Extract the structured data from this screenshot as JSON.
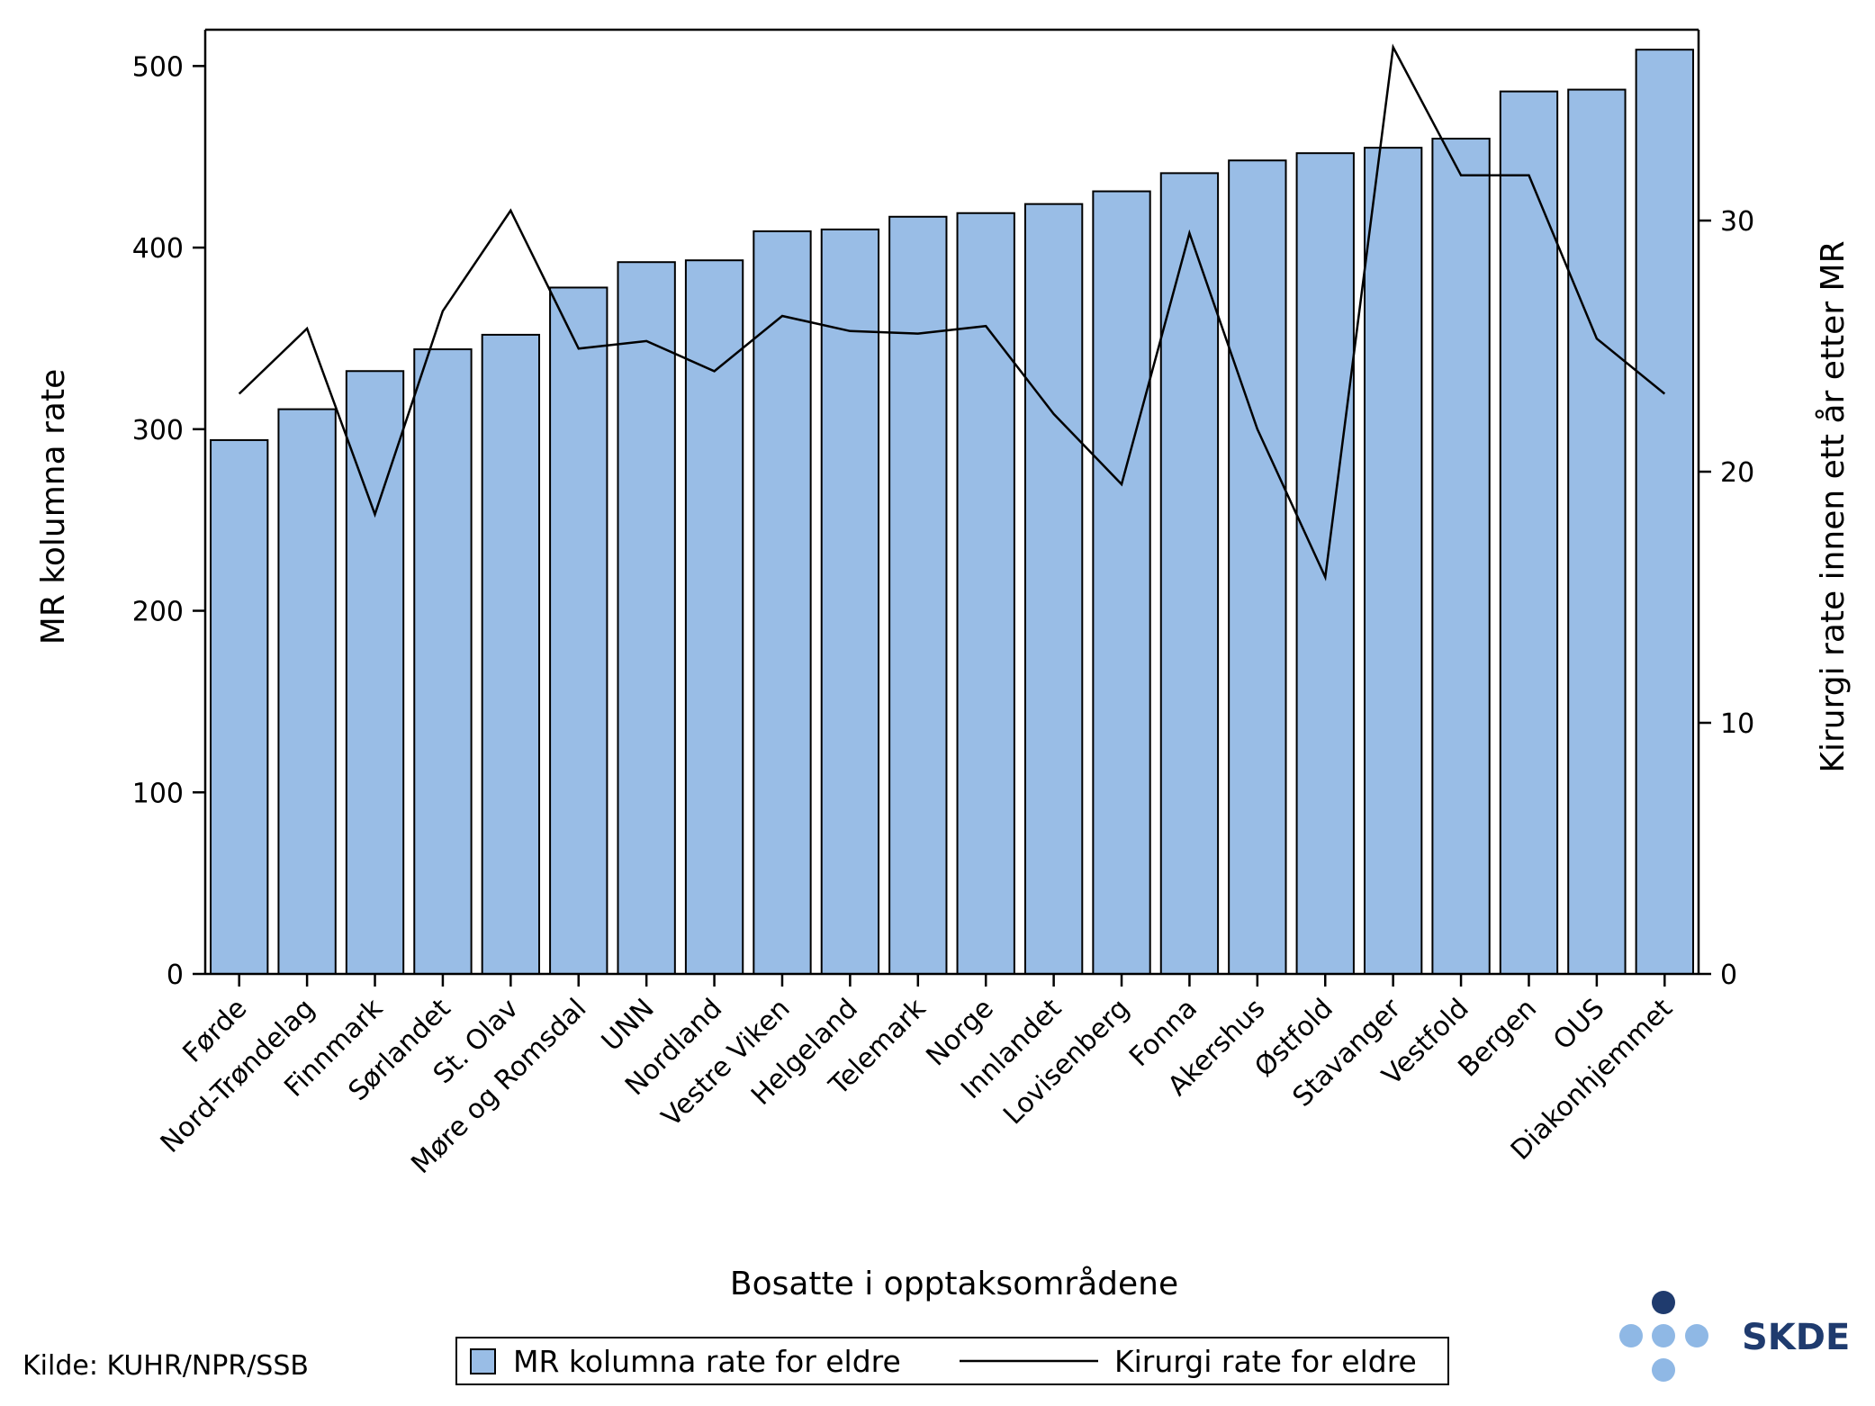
{
  "chart_data": {
    "type": "bar",
    "xlabel": "Bosatte i opptaksområdene",
    "ylabel": "MR kolumna rate",
    "y2label": "Kirurgi rate innen ett år etter MR",
    "ylim": [
      0,
      520
    ],
    "y2lim": [
      0,
      37.6
    ],
    "yticks": [
      0,
      100,
      200,
      300,
      400,
      500
    ],
    "y2ticks": [
      0,
      10,
      20,
      30
    ],
    "categories": [
      "Førde",
      "Nord-Trøndelag",
      "Finnmark",
      "Sørlandet",
      "St. Olav",
      "Møre og Romsdal",
      "UNN",
      "Nordland",
      "Vestre Viken",
      "Helgeland",
      "Telemark",
      "Norge",
      "Innlandet",
      "Lovisenberg",
      "Fonna",
      "Akershus",
      "Østfold",
      "Stavanger",
      "Vestfold",
      "Bergen",
      "OUS",
      "Diakonhjemmet"
    ],
    "series": [
      {
        "name": "MR kolumna rate for eldre",
        "type": "bar",
        "axis": "left",
        "values": [
          294,
          311,
          332,
          344,
          352,
          378,
          392,
          393,
          409,
          410,
          417,
          419,
          424,
          431,
          441,
          448,
          452,
          455,
          460,
          486,
          487,
          509
        ],
        "color": "#99bde6"
      },
      {
        "name": "Kirurgi rate for eldre",
        "type": "line",
        "axis": "right",
        "values": [
          23.1,
          25.7,
          18.3,
          26.4,
          30.4,
          24.9,
          25.2,
          24.0,
          26.2,
          25.6,
          25.5,
          25.8,
          22.3,
          19.5,
          29.5,
          21.7,
          15.8,
          36.9,
          31.8,
          31.8,
          25.3,
          23.1
        ],
        "color": "#000000"
      }
    ],
    "legend_position": "bottom",
    "grid": false
  },
  "source": "Kilde: KUHR/NPR/SSB",
  "logo": {
    "text": "SKDE",
    "colors": {
      "dark": "#1f3b6e",
      "light": "#8fb8e5",
      "text": "#1f3b6e"
    }
  }
}
